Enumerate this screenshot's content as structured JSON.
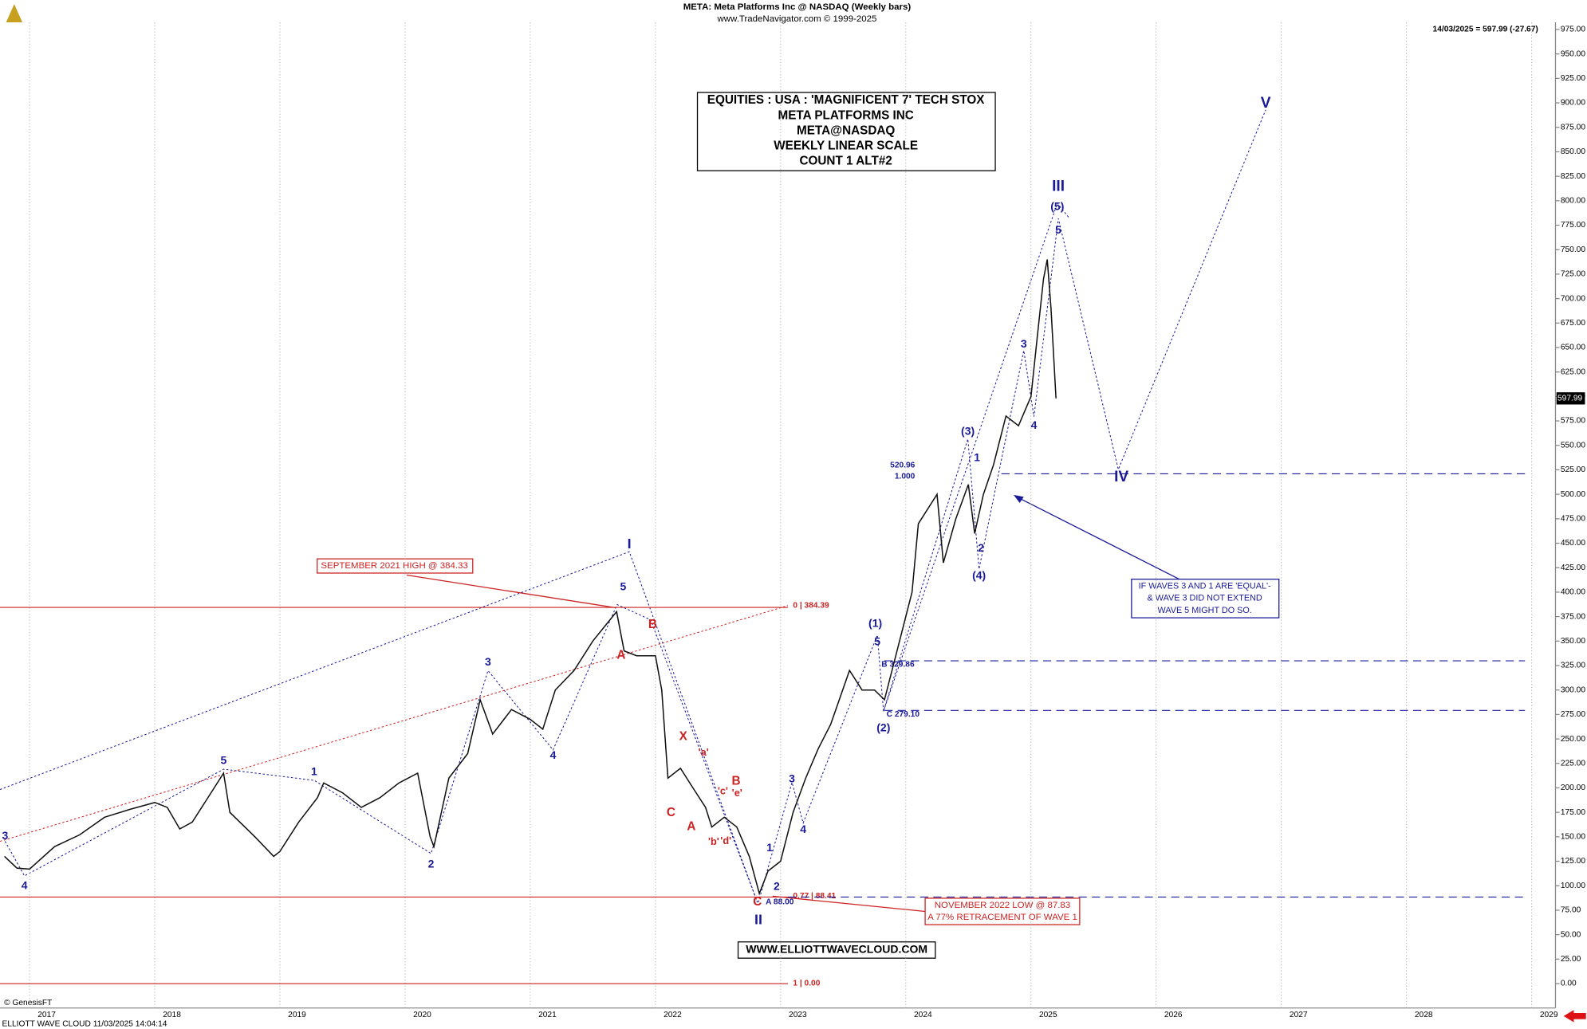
{
  "chart_data": {
    "type": "line",
    "title": "META:  Meta Platforms Inc @ NASDAQ  (Weekly bars)",
    "subtitle": "www.TradeNavigator.com © 1999-2025",
    "last_quote": "14/03/2025 = 597.99 (-27.67)",
    "last_price_tag": "597.99",
    "box_lines": [
      "EQUITIES : USA : 'MAGNIFICENT 7' TECH STOX",
      "META PLATFORMS INC",
      "META@NASDAQ",
      "WEEKLY LINEAR SCALE",
      "COUNT 1 ALT#2"
    ],
    "callouts": {
      "september": "SEPTEMBER 2021 HIGH @ 384.33",
      "november": [
        "NOVEMBER 2022 LOW @ 87.83",
        "A 77% RETRACEMENT OF WAVE 1"
      ],
      "equal": [
        "IF WAVES 3 AND 1 ARE 'EQUAL'-",
        "& WAVE 3 DID NOT EXTEND",
        "WAVE 5 MIGHT DO SO."
      ]
    },
    "website": "WWW.ELLIOTTWAVECLOUD.COM",
    "copyright": "© GenesisFT",
    "footer": "ELLIOTT WAVE CLOUD    11/03/2025 14:04:14",
    "color": "#111111",
    "x": [
      2016.8,
      2016.9,
      2017.0,
      2017.2,
      2017.4,
      2017.6,
      2017.8,
      2018.0,
      2018.1,
      2018.2,
      2018.3,
      2018.45,
      2018.55,
      2018.6,
      2018.8,
      2018.95,
      2019.0,
      2019.15,
      2019.3,
      2019.35,
      2019.5,
      2019.65,
      2019.8,
      2019.95,
      2020.1,
      2020.2,
      2020.23,
      2020.35,
      2020.5,
      2020.6,
      2020.7,
      2020.85,
      2021.0,
      2021.1,
      2021.2,
      2021.35,
      2021.5,
      2021.69,
      2021.75,
      2021.85,
      2022.0,
      2022.05,
      2022.1,
      2022.2,
      2022.3,
      2022.4,
      2022.45,
      2022.55,
      2022.65,
      2022.75,
      2022.83,
      2022.9,
      2023.0,
      2023.1,
      2023.2,
      2023.3,
      2023.4,
      2023.55,
      2023.65,
      2023.75,
      2023.83,
      2023.95,
      2024.05,
      2024.1,
      2024.25,
      2024.3,
      2024.4,
      2024.5,
      2024.55,
      2024.62,
      2024.7,
      2024.8,
      2024.9,
      2025.0,
      2025.05,
      2025.1,
      2025.13,
      2025.16,
      2025.2
    ],
    "values": [
      130,
      118,
      117,
      140,
      152,
      170,
      178,
      185,
      180,
      158,
      165,
      195,
      215,
      175,
      150,
      130,
      135,
      165,
      190,
      205,
      195,
      180,
      190,
      205,
      215,
      150,
      140,
      210,
      235,
      290,
      255,
      280,
      270,
      260,
      300,
      320,
      350,
      380,
      340,
      335,
      335,
      300,
      210,
      220,
      200,
      180,
      160,
      170,
      160,
      130,
      92,
      115,
      125,
      175,
      210,
      240,
      265,
      320,
      300,
      300,
      290,
      350,
      400,
      470,
      500,
      430,
      475,
      510,
      460,
      500,
      530,
      580,
      570,
      600,
      660,
      720,
      740,
      690,
      598
    ],
    "xlim": [
      2016.764,
      2029.19
    ],
    "xticks": [
      2017,
      2018,
      2019,
      2020,
      2021,
      2022,
      2023,
      2024,
      2025,
      2026,
      2027,
      2028,
      2029
    ],
    "ylim": [
      0,
      975
    ],
    "yticks": [
      {
        "value": 0,
        "label": "0.00"
      },
      {
        "value": 25,
        "label": "25.00"
      },
      {
        "value": 50,
        "label": "50.00"
      },
      {
        "value": 75,
        "label": "75.00"
      },
      {
        "value": 100,
        "label": "100.00"
      },
      {
        "value": 125,
        "label": "125.00"
      },
      {
        "value": 150,
        "label": "150.00"
      },
      {
        "value": 175,
        "label": "175.00"
      },
      {
        "value": 200,
        "label": "200.00"
      },
      {
        "value": 225,
        "label": "225.00"
      },
      {
        "value": 250,
        "label": "250.00"
      },
      {
        "value": 275,
        "label": "275.00"
      },
      {
        "value": 300,
        "label": "300.00"
      },
      {
        "value": 325,
        "label": "325.00"
      },
      {
        "value": 350,
        "label": "350.00"
      },
      {
        "value": 375,
        "label": "375.00"
      },
      {
        "value": 400,
        "label": "400.00"
      },
      {
        "value": 425,
        "label": "425.00"
      },
      {
        "value": 450,
        "label": "450.00"
      },
      {
        "value": 475,
        "label": "475.00"
      },
      {
        "value": 500,
        "label": "500.00"
      },
      {
        "value": 525,
        "label": "525.00"
      },
      {
        "value": 550,
        "label": "550.00"
      },
      {
        "value": 575,
        "label": "575.00"
      },
      {
        "value": 600,
        "label": "600.00"
      },
      {
        "value": 625,
        "label": "625.00"
      },
      {
        "value": 650,
        "label": "650.00"
      },
      {
        "value": 675,
        "label": "675.00"
      },
      {
        "value": 700,
        "label": "700.00"
      },
      {
        "value": 725,
        "label": "725.00"
      },
      {
        "value": 750,
        "label": "750.00"
      },
      {
        "value": 775,
        "label": "775.00"
      },
      {
        "value": 800,
        "label": "800.00"
      },
      {
        "value": 825,
        "label": "825.00"
      },
      {
        "value": 850,
        "label": "850.00"
      },
      {
        "value": 875,
        "label": "875.00"
      },
      {
        "value": 900,
        "label": "900.00"
      },
      {
        "value": 925,
        "label": "925.00"
      },
      {
        "value": 950,
        "label": "950.00"
      },
      {
        "value": 975,
        "label": "975.00"
      }
    ],
    "grid": true,
    "levels": [
      {
        "value": 384.39,
        "label": "0 | 384.39",
        "color": "#cc2222"
      },
      {
        "value": 88.41,
        "label": "0.77 | 88.41",
        "color": "#cc2222"
      },
      {
        "value": 0,
        "label": "1 | 0.00",
        "color": "#cc2222"
      },
      {
        "value": 520.96,
        "label": "520.96",
        "color": "#1a1a99"
      },
      {
        "value": 329.86,
        "label": "B 329.86",
        "color": "#1a1a99"
      },
      {
        "value": 279.1,
        "label": "C 279.10",
        "color": "#1a1a99"
      }
    ],
    "level_note": "1.000",
    "annotations": [
      {
        "text": "3",
        "color": "#1a1a99"
      },
      {
        "text": "4",
        "color": "#1a1a99"
      },
      {
        "text": "5",
        "color": "#1a1a99"
      },
      {
        "text": "1",
        "color": "#1a1a99"
      },
      {
        "text": "2",
        "color": "#1a1a99"
      },
      {
        "text": "3",
        "color": "#1a1a99"
      },
      {
        "text": "4",
        "color": "#1a1a99"
      },
      {
        "text": "5",
        "color": "#1a1a99"
      },
      {
        "text": "I",
        "color": "#1a1a99"
      },
      {
        "text": "II",
        "color": "#1a1a99"
      },
      {
        "text": "1",
        "color": "#1a1a99"
      },
      {
        "text": "2",
        "color": "#1a1a99"
      },
      {
        "text": "3",
        "color": "#1a1a99"
      },
      {
        "text": "4",
        "color": "#1a1a99"
      },
      {
        "text": "5",
        "color": "#1a1a99"
      },
      {
        "text": "(1)",
        "color": "#1a1a99"
      },
      {
        "text": "(2)",
        "color": "#1a1a99"
      },
      {
        "text": "(3)",
        "color": "#1a1a99"
      },
      {
        "text": "1",
        "color": "#1a1a99"
      },
      {
        "text": "2",
        "color": "#1a1a99"
      },
      {
        "text": "(4)",
        "color": "#1a1a99"
      },
      {
        "text": "3",
        "color": "#1a1a99"
      },
      {
        "text": "4",
        "color": "#1a1a99"
      },
      {
        "text": "5",
        "color": "#1a1a99"
      },
      {
        "text": "(5)",
        "color": "#1a1a99"
      },
      {
        "text": "III",
        "color": "#1a1a99"
      },
      {
        "text": "IV",
        "color": "#1a1a99"
      },
      {
        "text": "V",
        "color": "#1a1a99"
      },
      {
        "text": "B",
        "color": "#cc2222"
      },
      {
        "text": "A",
        "color": "#cc2222"
      },
      {
        "text": "X",
        "color": "#cc2222"
      },
      {
        "text": "C",
        "color": "#cc2222"
      },
      {
        "text": "A",
        "color": "#cc2222"
      },
      {
        "text": "'a'",
        "color": "#cc2222"
      },
      {
        "text": "'c'",
        "color": "#cc2222"
      },
      {
        "text": "'e'",
        "color": "#cc2222"
      },
      {
        "text": "B",
        "color": "#cc2222"
      },
      {
        "text": "'b'",
        "color": "#cc2222"
      },
      {
        "text": "'d'",
        "color": "#cc2222"
      },
      {
        "text": "C",
        "color": "#cc2222"
      },
      {
        "text": "A 88.00",
        "color": "#1a1a99"
      }
    ]
  }
}
